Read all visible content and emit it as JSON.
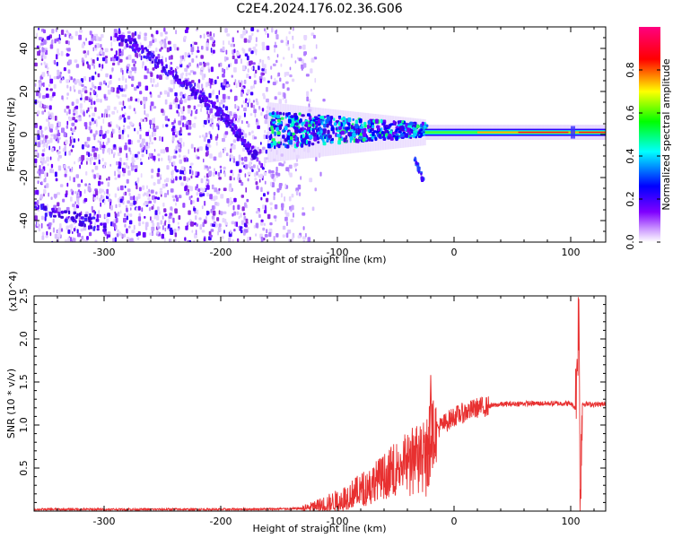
{
  "title": "C2E4.2024.176.02.36.G06",
  "chart_data": [
    {
      "type": "heatmap",
      "xlabel": "Height of straight line (km)",
      "ylabel": "Frequency (Hz)",
      "xlim": [
        -360,
        130
      ],
      "ylim": [
        -50,
        50
      ],
      "xticks": [
        -300,
        -200,
        -100,
        0,
        100
      ],
      "yticks": [
        -40,
        -20,
        0,
        20,
        40
      ],
      "colorbar": {
        "label": "Normalized spectral amplitude",
        "range": [
          0,
          1
        ],
        "ticks": [
          "0.0",
          "0.2",
          "0.4",
          "0.6",
          "0.8"
        ],
        "colormap": [
          "#ffffff",
          "#7f00ff",
          "#0000ff",
          "#00ffff",
          "#00ff00",
          "#ffff00",
          "#ff0000",
          "#ff0080"
        ]
      },
      "features": {
        "noise_region_x": [
          -360,
          -120
        ],
        "line_x": [
          -160,
          130
        ],
        "line_freq_hz": 1,
        "descending_track": [
          [
            -290,
            48
          ],
          [
            -240,
            28
          ],
          [
            -200,
            10
          ],
          [
            -170,
            -10
          ]
        ],
        "low_track": [
          [
            -360,
            -33
          ],
          [
            -300,
            -42
          ]
        ],
        "spur": [
          [
            -35,
            -10
          ],
          [
            -28,
            -20
          ]
        ]
      },
      "grid": false
    },
    {
      "type": "line",
      "xlabel": "Height of straight line (km)",
      "ylabel": "SNR (10 * v/v)",
      "yexponent": "(x10^4)",
      "xlim": [
        -360,
        130
      ],
      "ylim": [
        0,
        2.5
      ],
      "xticks": [
        -300,
        -200,
        -100,
        0,
        100
      ],
      "yticks": [
        0.5,
        1.0,
        1.5,
        2.0,
        2.5
      ],
      "color": "#e83030",
      "series": [
        {
          "x": [
            -360,
            -300,
            -250,
            -200,
            -150,
            -130,
            -120,
            -100,
            -90,
            -80,
            -70,
            -60,
            -50,
            -40,
            -30,
            -25,
            -20,
            -15,
            -10,
            -5,
            0,
            10,
            20,
            30,
            40,
            60,
            80,
            100,
            104,
            106,
            107,
            108,
            110,
            115,
            120,
            130
          ],
          "values": [
            0.02,
            0.02,
            0.02,
            0.02,
            0.025,
            0.03,
            0.05,
            0.12,
            0.18,
            0.25,
            0.33,
            0.42,
            0.52,
            0.62,
            0.72,
            0.78,
            0.9,
            0.95,
            1.0,
            1.05,
            1.1,
            1.15,
            1.2,
            1.22,
            1.24,
            1.25,
            1.25,
            1.25,
            1.2,
            1.9,
            2.4,
            0.2,
            1.25,
            1.24,
            1.24,
            1.24
          ]
        }
      ],
      "grid": false
    }
  ]
}
